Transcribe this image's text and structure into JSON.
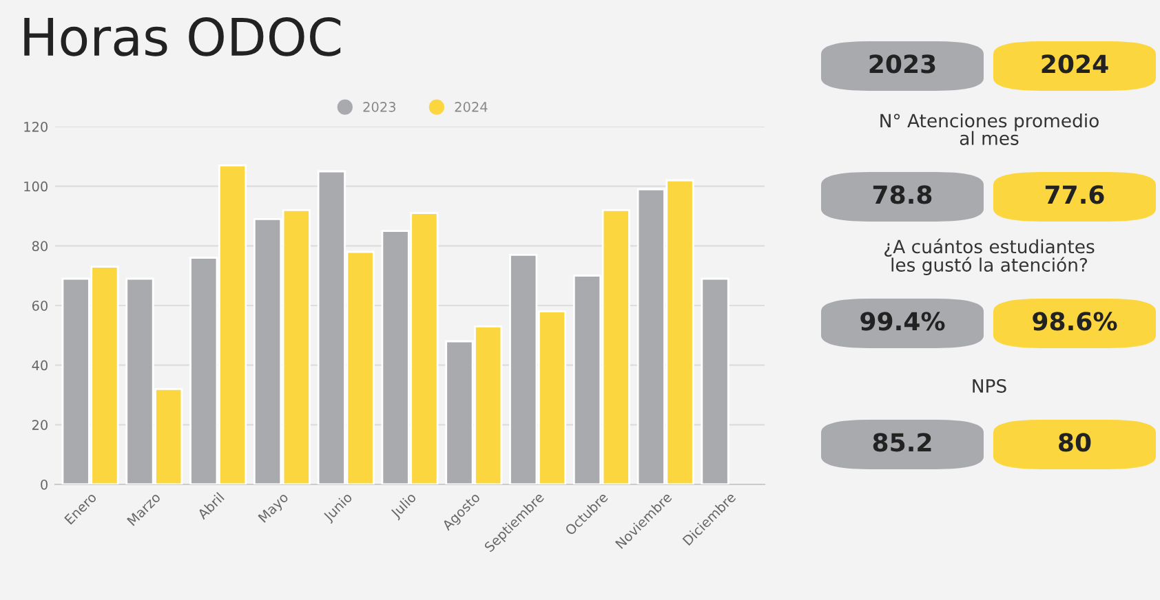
{
  "chart_data": [
    {
      "type": "bar",
      "title": "Horas ODOC",
      "categories": [
        "Enero",
        "Marzo",
        "Abril",
        "Mayo",
        "Junio",
        "Julio",
        "Agosto",
        "Septiembre",
        "Octubre",
        "Noviembre",
        "Diciembre"
      ],
      "series": [
        {
          "name": "2023",
          "color": "#a9aaae",
          "values": [
            69,
            69,
            76,
            89,
            105,
            85,
            48,
            77,
            70,
            99,
            69
          ]
        },
        {
          "name": "2024",
          "color": "#fcd63f",
          "values": [
            73,
            32,
            107,
            92,
            78,
            91,
            53,
            58,
            92,
            102,
            null
          ]
        }
      ],
      "ylim": [
        0,
        120
      ],
      "yticks": [
        0,
        20,
        40,
        60,
        80,
        100,
        120
      ],
      "grid": "y",
      "legend": "top"
    },
    {
      "type": "other",
      "categories": [
        "N° Atenciones promedio\nal mes",
        "¿A cuántos estudiantes\nles gustó la atención?",
        "NPS"
      ],
      "series": [
        {
          "name": "2023",
          "color": "#a9aaae",
          "values": [
            78.8,
            99.4,
            85.2
          ],
          "value_labels": [
            "78.8",
            "99.4%",
            "85.2"
          ]
        },
        {
          "name": "2024",
          "color": "#fcd63f",
          "values": [
            77.6,
            98.6,
            80
          ],
          "value_labels": [
            "77.6",
            "98.6%",
            "80"
          ]
        }
      ]
    }
  ]
}
